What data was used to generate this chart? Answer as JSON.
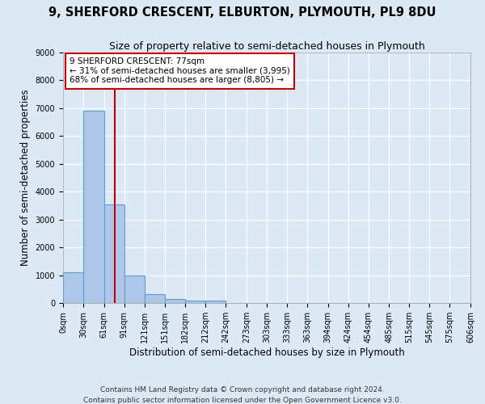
{
  "title": "9, SHERFORD CRESCENT, ELBURTON, PLYMOUTH, PL9 8DU",
  "subtitle": "Size of property relative to semi-detached houses in Plymouth",
  "xlabel": "Distribution of semi-detached houses by size in Plymouth",
  "ylabel": "Number of semi-detached properties",
  "footer_line1": "Contains HM Land Registry data © Crown copyright and database right 2024.",
  "footer_line2": "Contains public sector information licensed under the Open Government Licence v3.0.",
  "bin_edges": [
    0,
    30,
    61,
    91,
    121,
    151,
    182,
    212,
    242,
    273,
    303,
    333,
    363,
    394,
    424,
    454,
    485,
    515,
    545,
    575,
    606
  ],
  "bar_heights": [
    1100,
    6900,
    3550,
    1000,
    320,
    145,
    90,
    80,
    0,
    0,
    0,
    0,
    0,
    0,
    0,
    0,
    0,
    0,
    0,
    0
  ],
  "bar_color": "#aec6e8",
  "bar_edge_color": "#5a9fd4",
  "bar_edge_width": 0.8,
  "red_line_x": 77,
  "red_line_color": "#cc0000",
  "annotation_text": "9 SHERFORD CRESCENT: 77sqm\n← 31% of semi-detached houses are smaller (3,995)\n68% of semi-detached houses are larger (8,805) →",
  "annotation_box_color": "#ffffff",
  "annotation_box_edge_color": "#cc0000",
  "annotation_fontsize": 7.5,
  "ylim": [
    0,
    9000
  ],
  "yticks": [
    0,
    1000,
    2000,
    3000,
    4000,
    5000,
    6000,
    7000,
    8000,
    9000
  ],
  "tick_labels": [
    "0sqm",
    "30sqm",
    "61sqm",
    "91sqm",
    "121sqm",
    "151sqm",
    "182sqm",
    "212sqm",
    "242sqm",
    "273sqm",
    "303sqm",
    "333sqm",
    "363sqm",
    "394sqm",
    "424sqm",
    "454sqm",
    "485sqm",
    "515sqm",
    "545sqm",
    "575sqm",
    "606sqm"
  ],
  "background_color": "#dce9f5",
  "plot_background_color": "#dce9f5",
  "grid_color": "#ffffff",
  "title_fontsize": 10.5,
  "subtitle_fontsize": 9,
  "axis_label_fontsize": 8.5,
  "tick_fontsize": 7,
  "footer_fontsize": 6.5
}
